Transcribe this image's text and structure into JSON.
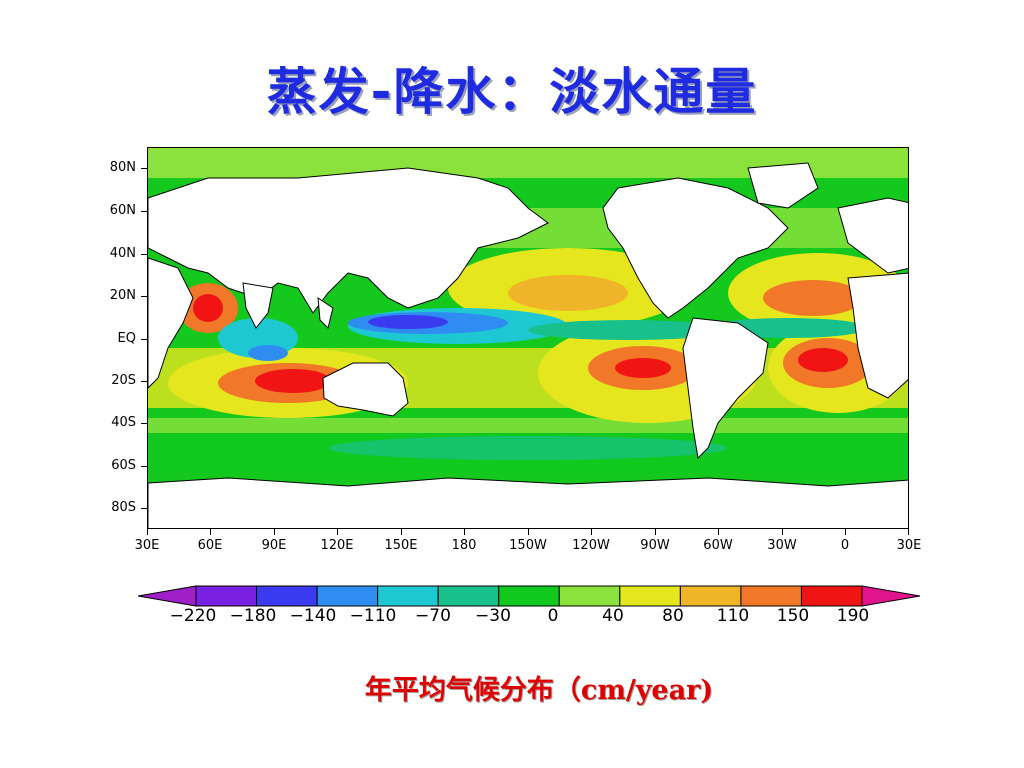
{
  "title": "蒸发-降水：淡水通量",
  "map": {
    "lat_labels": [
      "80N",
      "60N",
      "40N",
      "20N",
      "EQ",
      "20S",
      "40S",
      "60S",
      "80S"
    ],
    "lon_labels": [
      "30E",
      "60E",
      "90E",
      "120E",
      "150E",
      "180",
      "150W",
      "120W",
      "90W",
      "60W",
      "30W",
      "0",
      "30E"
    ]
  },
  "colorbar": {
    "labels": [
      "−220",
      "−180",
      "−140",
      "−110",
      "−70",
      "−30",
      "0",
      "40",
      "80",
      "110",
      "150",
      "190"
    ],
    "colors": [
      "#a020c8",
      "#7a20e0",
      "#3a3af0",
      "#2f8cf0",
      "#1ec8d2",
      "#18c08c",
      "#10c81e",
      "#8ce23c",
      "#e6e61e",
      "#f0b428",
      "#f07828",
      "#f01414",
      "#e0148c"
    ]
  },
  "caption": "年平均气候分布（cm/year)"
}
